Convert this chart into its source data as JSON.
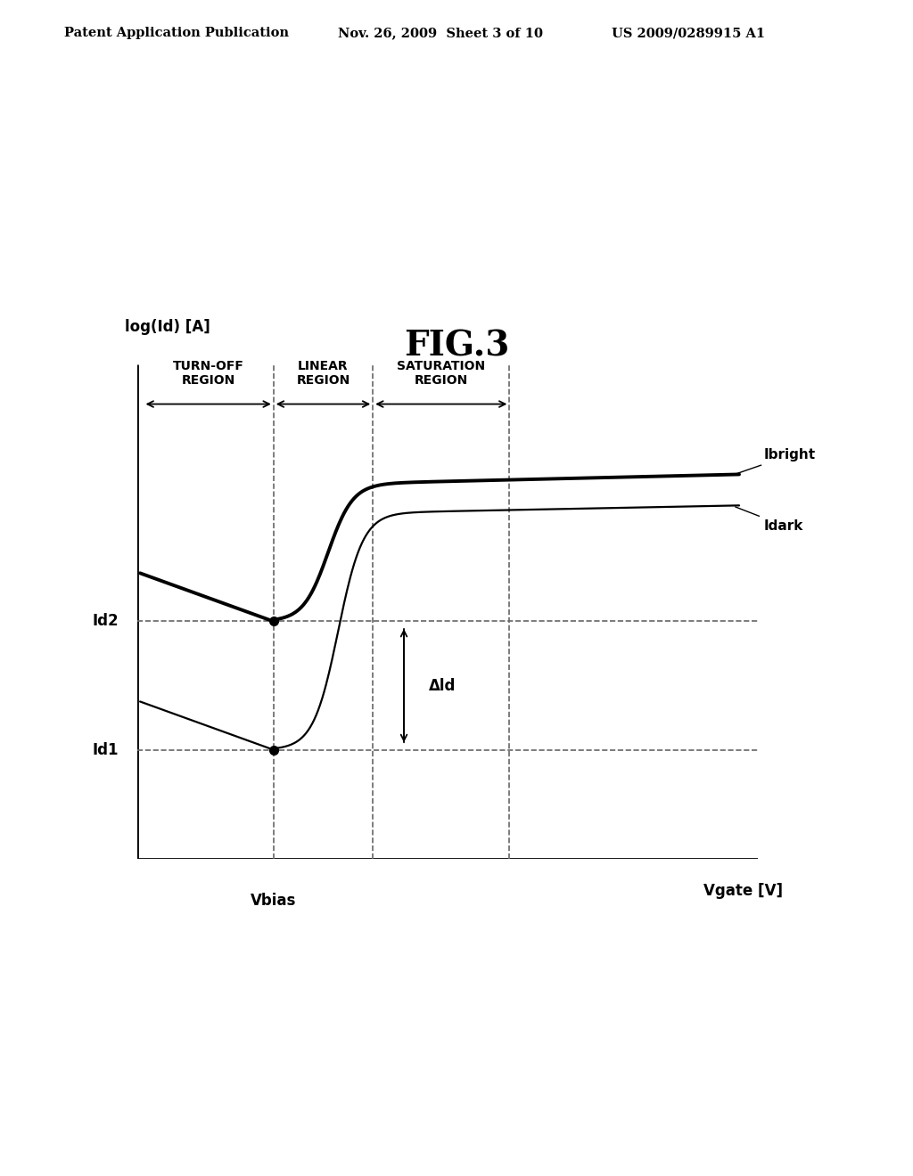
{
  "title": "FIG.3",
  "header_left": "Patent Application Publication",
  "header_center": "Nov. 26, 2009  Sheet 3 of 10",
  "header_right": "US 2009/0289915 A1",
  "ylabel": "log(Id) [A]",
  "xlabel": "Vgate [V]",
  "vbias_label": "Vbias",
  "id2_label": "Id2",
  "id1_label": "Id1",
  "delta_id_label": "Δld",
  "ibright_label": "Ibright",
  "idark_label": "Idark",
  "background_color": "#ffffff",
  "line_color": "#000000"
}
